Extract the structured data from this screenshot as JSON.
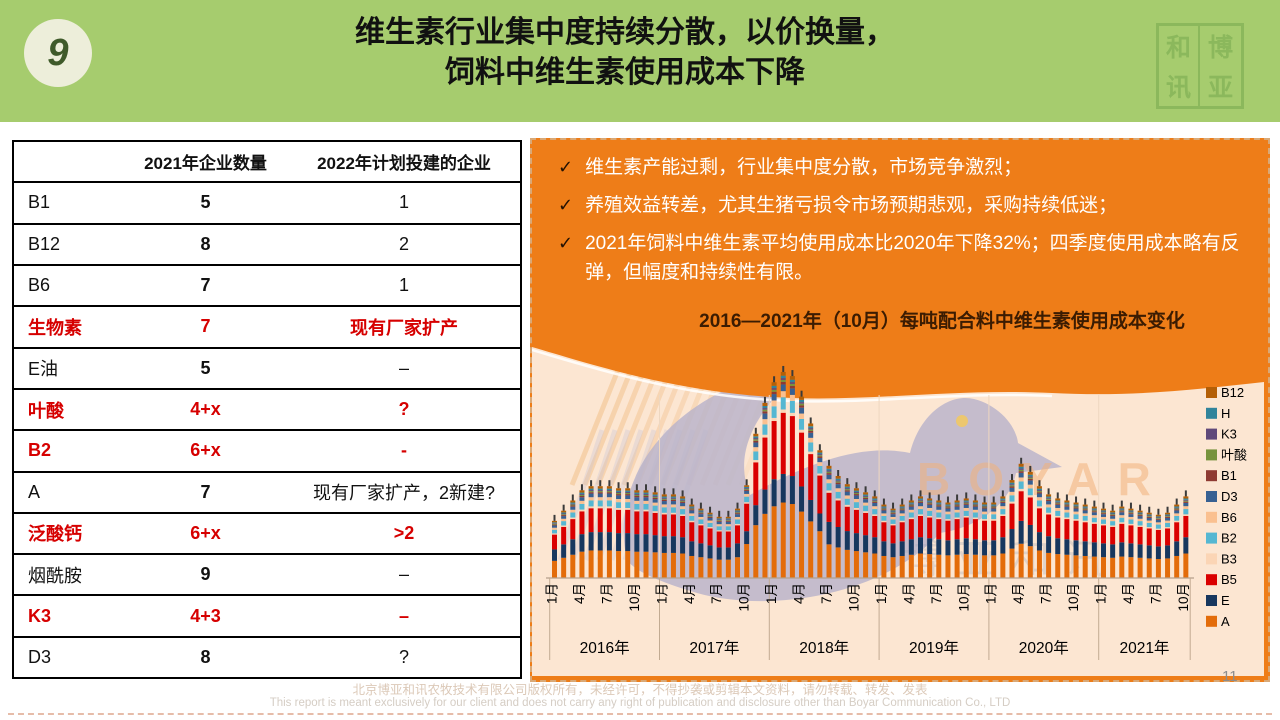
{
  "slide": {
    "number": "9",
    "title_line1": "维生素行业集中度持续分散，以价换量，",
    "title_line2": "饲料中维生素使用成本下降",
    "logo_chars": [
      "和",
      "博",
      "讯",
      "亚"
    ],
    "page_number": "11",
    "footer_line1": "北京博亚和讯农牧技术有限公司版权所有，未经许可，不得抄袭或剪辑本文资料，请勿转载、转发、发表",
    "footer_line2": "This report is meant exclusively for our client and does not carry any right of publication and disclosure other than Boyar Communication Co., LTD"
  },
  "table": {
    "headers": [
      "",
      "2021年企业数量",
      "2022年计划投建的企业"
    ],
    "rows": [
      {
        "label": "B1",
        "count": "5",
        "plan": "1",
        "red": false
      },
      {
        "label": "B12",
        "count": "8",
        "plan": "2",
        "red": false
      },
      {
        "label": "B6",
        "count": "7",
        "plan": "1",
        "red": false
      },
      {
        "label": "生物素",
        "count": "7",
        "plan": "现有厂家扩产",
        "red": true
      },
      {
        "label": "E油",
        "count": "5",
        "plan": "–",
        "red": false
      },
      {
        "label": "叶酸",
        "count": "4+x",
        "plan": "?",
        "red": true
      },
      {
        "label": "B2",
        "count": "6+x",
        "plan": "-",
        "red": true
      },
      {
        "label": "A",
        "count": "7",
        "plan": "现有厂家扩产，2新建?",
        "red": false
      },
      {
        "label": "泛酸钙",
        "count": "6+x",
        "plan": ">2",
        "red": true
      },
      {
        "label": "烟酰胺",
        "count": "9",
        "plan": "–",
        "red": false
      },
      {
        "label": "K3",
        "count": "4+3",
        "plan": "–",
        "red": true
      },
      {
        "label": "D3",
        "count": "8",
        "plan": "?",
        "red": false
      }
    ]
  },
  "bullets": {
    "check": "✓",
    "items": [
      "维生素产能过剩，行业集中度分散，市场竞争激烈；",
      "养殖效益转差，尤其生猪亏损令市场预期悲观，采购持续低迷；",
      "2021年饲料中维生素平均使用成本比2020年下降32%；四季度使用成本略有反弹，但幅度和持续性有限。"
    ]
  },
  "watermark": {
    "text": "BOYAR",
    "cn": "博亚和讯"
  },
  "chart_data": {
    "type": "bar",
    "stacked": true,
    "title": "2016—2021年（10月）每吨配合料中维生素使用成本变化",
    "years": [
      {
        "label": "2016年",
        "months": 12
      },
      {
        "label": "2017年",
        "months": 12
      },
      {
        "label": "2018年",
        "months": 12
      },
      {
        "label": "2019年",
        "months": 12
      },
      {
        "label": "2020年",
        "months": 12
      },
      {
        "label": "2021年",
        "months": 10
      }
    ],
    "month_tick_labels": [
      "1月",
      "4月",
      "7月",
      "10月"
    ],
    "tick_month_offsets": [
      0,
      3,
      6,
      9
    ],
    "y_axis_visible": false,
    "note": "no y-axis labels shown; monthly totals are relative estimates (peak = 100)",
    "ylim": [
      0,
      100
    ],
    "series": [
      {
        "name": "A",
        "color": "#e36c0a"
      },
      {
        "name": "E",
        "color": "#17375e"
      },
      {
        "name": "B5",
        "color": "#da0000"
      },
      {
        "name": "B3",
        "color": "#fbd5b5"
      },
      {
        "name": "B2",
        "color": "#55b7d2"
      },
      {
        "name": "B6",
        "color": "#fac090"
      },
      {
        "name": "D3",
        "color": "#376092"
      },
      {
        "name": "B1",
        "color": "#8e3a32"
      },
      {
        "name": "叶酸",
        "color": "#77933c"
      },
      {
        "name": "K3",
        "color": "#5f497a"
      },
      {
        "name": "H",
        "color": "#31849b"
      },
      {
        "name": "B12",
        "color": "#b45f06"
      }
    ],
    "legend_top_to_bottom": [
      "B12",
      "H",
      "K3",
      "叶酸",
      "B1",
      "D3",
      "B6",
      "B2",
      "B3",
      "B5",
      "E",
      "A"
    ],
    "totals": [
      28,
      33,
      38,
      43,
      45,
      45,
      45,
      44,
      44,
      43,
      43,
      42,
      41,
      41,
      40,
      36,
      34,
      32,
      30,
      30,
      34,
      45,
      70,
      85,
      95,
      100,
      98,
      88,
      75,
      62,
      55,
      50,
      46,
      44,
      42,
      40,
      36,
      34,
      36,
      38,
      40,
      39,
      38,
      37,
      38,
      39,
      38,
      37,
      37,
      40,
      48,
      56,
      52,
      45,
      41,
      39,
      38,
      37,
      36,
      35,
      34,
      33,
      35,
      34,
      33,
      32,
      31,
      32,
      36,
      40
    ],
    "composition_normal": [
      0.3,
      0.2,
      0.26,
      0.02,
      0.065,
      0.035,
      0.04,
      0.015,
      0.012,
      0.011,
      0.016,
      0.026
    ],
    "composition_peak": [
      0.37,
      0.14,
      0.3,
      0.016,
      0.06,
      0.03,
      0.033,
      0.012,
      0.01,
      0.009,
      0.012,
      0.018
    ],
    "peak_month_range": [
      21,
      29
    ]
  }
}
